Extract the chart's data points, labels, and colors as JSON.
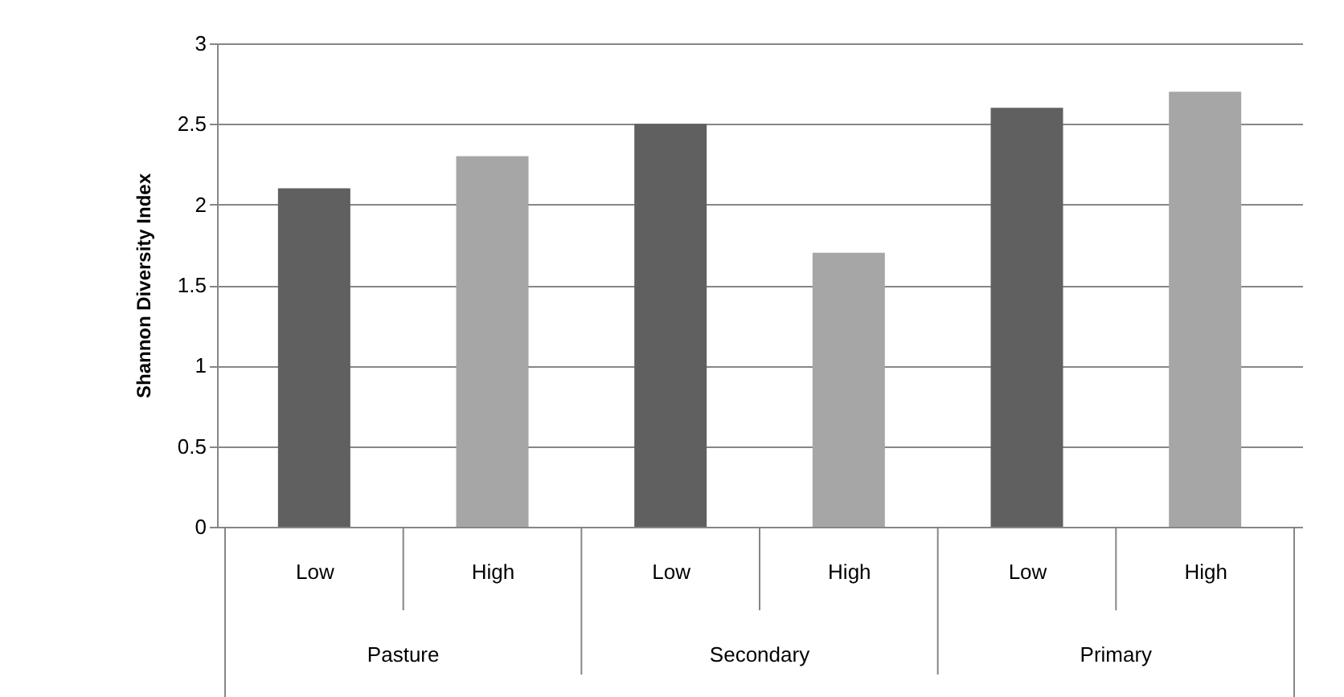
{
  "chart_data": {
    "type": "bar",
    "ylabel": "Shannon Diversity Index",
    "categories": [
      "Low",
      "High",
      "Low",
      "High",
      "Low",
      "High"
    ],
    "values": [
      2.1,
      2.3,
      2.5,
      1.7,
      2.6,
      2.7
    ],
    "colors": [
      "#606060",
      "#a6a6a6",
      "#606060",
      "#a6a6a6",
      "#606060",
      "#a6a6a6"
    ],
    "annotations": [
      "Pasture",
      "Secondary",
      "Primary"
    ],
    "ylim": [
      0,
      3
    ],
    "yticks": [
      0,
      0.5,
      1,
      1.5,
      2,
      2.5,
      3
    ],
    "grid": "y"
  }
}
